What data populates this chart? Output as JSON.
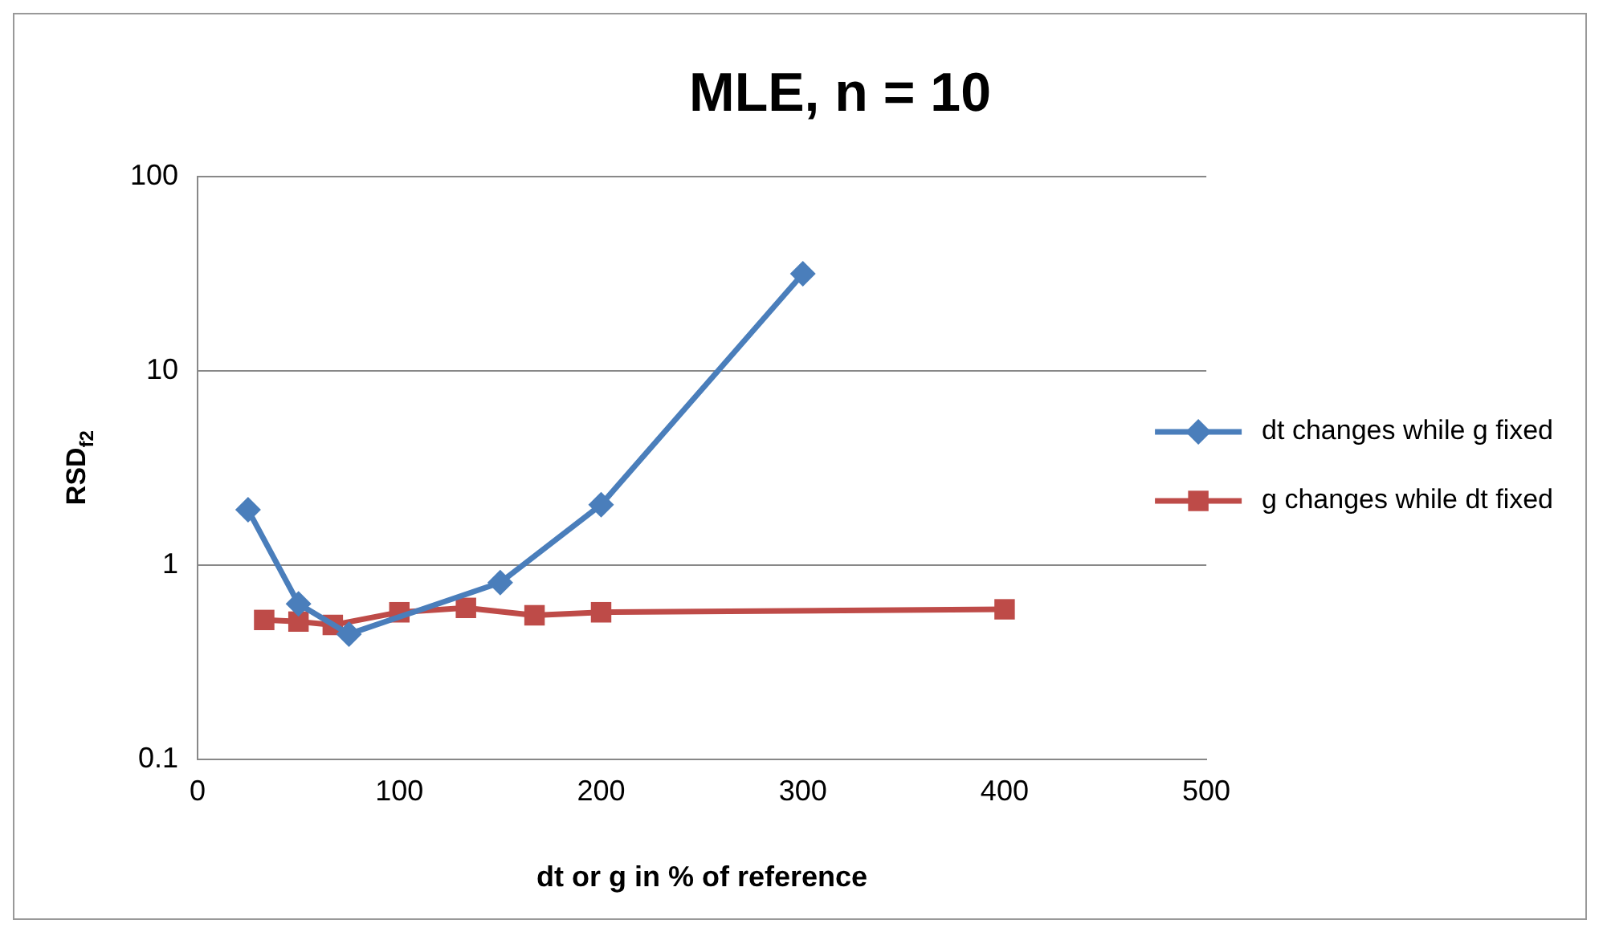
{
  "chart_data": {
    "type": "line",
    "title": "MLE, n = 10",
    "xlabel": "dt or g in % of reference",
    "ylabel": "RSD$_{f2}$",
    "log": "y",
    "grid": "y",
    "legend": "right",
    "line_style": "solid",
    "xlim": [
      0,
      500
    ],
    "xticks": [
      0,
      100,
      200,
      300,
      400,
      500
    ],
    "ylim": [
      0.1,
      100
    ],
    "yticks": [
      0.1,
      1,
      10,
      100
    ],
    "series": [
      {
        "name": "dt changes while g fixed",
        "color": "#4a7ebb",
        "marker": "diamond",
        "x": [
          25,
          50,
          75,
          150,
          200,
          300
        ],
        "values": [
          1.92,
          0.63,
          0.44,
          0.81,
          2.04,
          31.5
        ]
      },
      {
        "name": "g changes while dt fixed",
        "color": "#be4b48",
        "marker": "square",
        "x": [
          33,
          50,
          67,
          100,
          133,
          167,
          200,
          400
        ],
        "values": [
          0.52,
          0.51,
          0.49,
          0.57,
          0.6,
          0.55,
          0.57,
          0.59
        ]
      }
    ]
  }
}
